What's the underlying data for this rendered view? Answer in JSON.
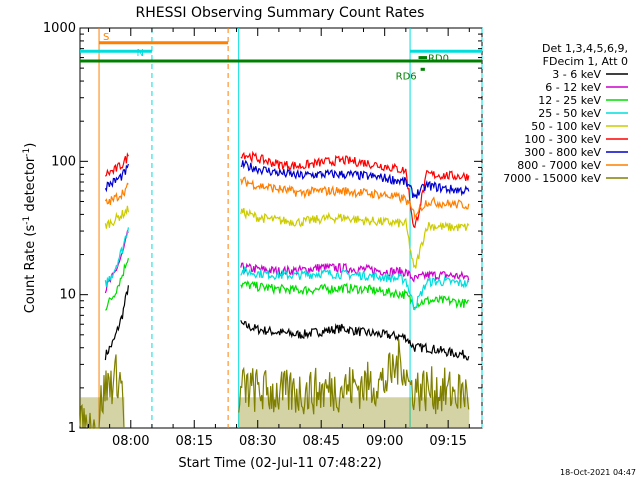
{
  "chart_data": {
    "type": "line",
    "title": "RHESSI Observing Summary Count Rates",
    "xlabel": "Start Time (02-Jul-11 07:48:22)",
    "ylabel_main": "Count Rate (s",
    "ylabel_sup1": "-1",
    "ylabel_mid": " detector",
    "ylabel_sup2": "-1",
    "ylabel_end": ")",
    "y_scale": "log",
    "ylim": [
      1,
      1000
    ],
    "xlim_minutes": [
      -12,
      83
    ],
    "x_ticks": [
      {
        "label": "08:00",
        "minutes": 0
      },
      {
        "label": "08:15",
        "minutes": 15
      },
      {
        "label": "08:30",
        "minutes": 30
      },
      {
        "label": "08:45",
        "minutes": 45
      },
      {
        "label": "09:00",
        "minutes": 60
      },
      {
        "label": "09:15",
        "minutes": 75
      }
    ],
    "y_ticks": [
      {
        "label": "1",
        "value": 1
      },
      {
        "label": "10",
        "value": 10
      },
      {
        "label": "100",
        "value": 100
      },
      {
        "label": "1000",
        "value": 1000
      }
    ],
    "legend_header": [
      "Det 1,3,4,5,6,9,",
      "FDecim 1, Att 0"
    ],
    "legend_placement": "right",
    "series": [
      {
        "name": "3 - 6 keV",
        "color": "#000000",
        "segments": [
          {
            "x": [
              -6,
              -4,
              -2,
              -0.5
            ],
            "y": [
              3.5,
              4.5,
              7,
              12
            ]
          },
          {
            "x": [
              26,
              30,
              35,
              40,
              45,
              50,
              55,
              60,
              65,
              67,
              70,
              75,
              80
            ],
            "y": [
              6,
              5.5,
              5.2,
              5,
              5.3,
              5.6,
              5.2,
              5,
              4.8,
              4,
              4,
              3.7,
              3.5
            ]
          }
        ]
      },
      {
        "name": "6 - 12 keV",
        "color": "#cc00cc",
        "segments": [
          {
            "x": [
              -6,
              -4,
              -2,
              -0.5
            ],
            "y": [
              11,
              14,
              20,
              30
            ]
          },
          {
            "x": [
              26,
              30,
              35,
              40,
              45,
              50,
              55,
              60,
              65,
              67,
              70,
              75,
              80
            ],
            "y": [
              16,
              15.5,
              15,
              15.2,
              16,
              15.8,
              15.5,
              15,
              14.8,
              13,
              14,
              14,
              13.5
            ]
          }
        ]
      },
      {
        "name": "12 - 25 keV",
        "color": "#00dd00",
        "segments": [
          {
            "x": [
              -6,
              -4,
              -2,
              -0.5
            ],
            "y": [
              8,
              10,
              14,
              20
            ]
          },
          {
            "x": [
              26,
              30,
              35,
              40,
              45,
              50,
              55,
              60,
              65,
              67,
              70,
              75,
              80
            ],
            "y": [
              12,
              11.5,
              11,
              10.8,
              11,
              11.2,
              11,
              10.5,
              10,
              8.5,
              9,
              9,
              8.5
            ]
          }
        ]
      },
      {
        "name": "25 - 50 keV",
        "color": "#00dddd",
        "segments": [
          {
            "x": [
              -6,
              -4,
              -2,
              -0.5
            ],
            "y": [
              12,
              15,
              22,
              33
            ]
          },
          {
            "x": [
              26,
              30,
              35,
              40,
              45,
              50,
              55,
              60,
              65,
              67,
              70,
              75,
              80
            ],
            "y": [
              15,
              14.5,
              14,
              14,
              14.5,
              14.2,
              14,
              13.5,
              13,
              8,
              12.5,
              12.5,
              12
            ]
          }
        ]
      },
      {
        "name": "50 - 100 keV",
        "color": "#cccc00",
        "segments": [
          {
            "x": [
              -6,
              -4,
              -2,
              -0.5
            ],
            "y": [
              33,
              36,
              40,
              44
            ]
          },
          {
            "x": [
              26,
              30,
              35,
              40,
              45,
              50,
              55,
              60,
              65,
              67,
              70,
              75,
              80
            ],
            "y": [
              42,
              38,
              36,
              35,
              37,
              38,
              36,
              35,
              34,
              15,
              33,
              32,
              32
            ]
          }
        ]
      },
      {
        "name": "100 - 300 keV",
        "color": "#ff0000",
        "segments": [
          {
            "x": [
              -6,
              -4,
              -2,
              -0.5
            ],
            "y": [
              80,
              85,
              95,
              110
            ]
          },
          {
            "x": [
              26,
              30,
              35,
              40,
              45,
              50,
              55,
              60,
              65,
              67,
              70,
              75,
              80
            ],
            "y": [
              115,
              105,
              95,
              92,
              98,
              102,
              98,
              92,
              85,
              30,
              80,
              78,
              77
            ]
          }
        ]
      },
      {
        "name": "300 - 800 keV",
        "color": "#0000cc",
        "segments": [
          {
            "x": [
              -6,
              -4,
              -2,
              -0.5
            ],
            "y": [
              65,
              70,
              78,
              90
            ]
          },
          {
            "x": [
              26,
              30,
              35,
              40,
              45,
              50,
              55,
              60,
              65,
              67,
              70,
              75,
              80
            ],
            "y": [
              95,
              88,
              82,
              78,
              80,
              80,
              78,
              75,
              70,
              55,
              66,
              62,
              60
            ]
          }
        ]
      },
      {
        "name": "800 - 7000 keV",
        "color": "#ff7f00",
        "segments": [
          {
            "x": [
              -6,
              -4,
              -2,
              -0.5
            ],
            "y": [
              48,
              52,
              58,
              65
            ]
          },
          {
            "x": [
              26,
              30,
              35,
              40,
              45,
              50,
              55,
              60,
              65,
              67,
              70,
              75,
              80
            ],
            "y": [
              72,
              66,
              62,
              58,
              60,
              60,
              58,
              56,
              52,
              40,
              50,
              48,
              47
            ]
          }
        ]
      },
      {
        "name": "7000 - 15000 keV",
        "color": "#808000",
        "segments": [
          {
            "x": [
              -12,
              -7.5,
              -7,
              -6,
              -3,
              -2,
              -1.5
            ],
            "y": [
              1,
              1,
              1.6,
              2,
              2.5,
              2,
              1
            ]
          },
          {
            "x": [
              25.5,
              26,
              35,
              45,
              60,
              64,
              66,
              80
            ],
            "y": [
              1,
              2,
              1.8,
              1.9,
              2.2,
              3.3,
              2,
              1.8
            ]
          }
        ]
      }
    ],
    "state_bars": [
      {
        "label": "S",
        "color": "#ff7f00",
        "x_start": -7.5,
        "x_end": 23,
        "y": 775
      },
      {
        "label": "N",
        "color": "#00dddd",
        "x_start": -12,
        "x_end": 5,
        "y": 670
      },
      {
        "label": "",
        "color": "#00dddd",
        "x_start": 66,
        "x_end": 83,
        "y": 670
      },
      {
        "label": "",
        "color": "#008000",
        "x_start": -12,
        "x_end": 83,
        "y": 565
      },
      {
        "label": "RD0",
        "color": "#008000",
        "x_start": 68,
        "x_end": 70,
        "y": 600
      },
      {
        "label": "RD6",
        "color": "#008000",
        "x_start": 68.5,
        "x_end": 69.5,
        "y": 490
      }
    ],
    "vertical_markers": [
      {
        "minutes": -7.5,
        "color": "#ff7f00",
        "style": "solid"
      },
      {
        "minutes": 5,
        "color": "#00dddd",
        "style": "dashed"
      },
      {
        "minutes": 23,
        "color": "#ff7f00",
        "style": "dashed"
      },
      {
        "minutes": 25.5,
        "color": "#00dddd",
        "style": "solid"
      },
      {
        "minutes": 66,
        "color": "#00dddd",
        "style": "solid"
      },
      {
        "minutes": 83,
        "color": "#00dddd",
        "style": "dashed"
      }
    ]
  },
  "footer_timestamp": "18-Oct-2021 04:47"
}
